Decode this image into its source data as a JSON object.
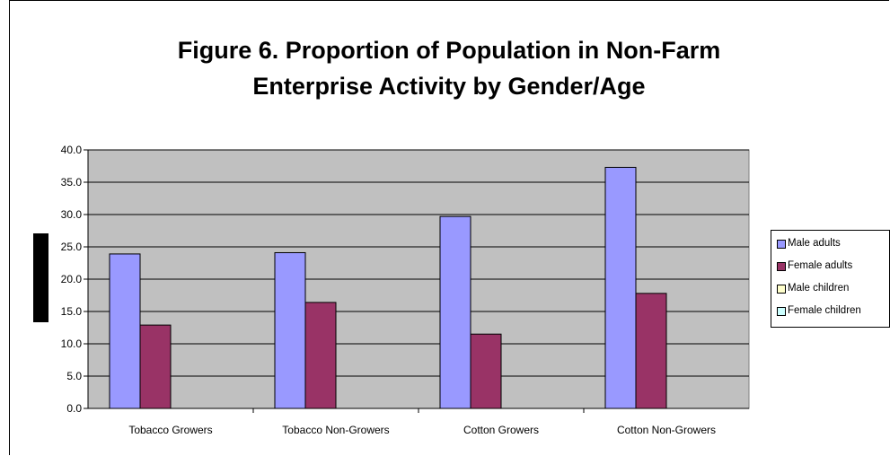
{
  "chart_data": {
    "type": "bar",
    "title_lines": [
      "Figure 6. Proportion of Population in Non-Farm",
      "Enterprise Activity by Gender/Age"
    ],
    "categories": [
      "Tobacco Growers",
      "Tobacco Non-Growers",
      "Cotton Growers",
      "Cotton Non-Growers"
    ],
    "series": [
      {
        "name": "Male adults",
        "color": "#9999ff",
        "values": [
          23.9,
          24.1,
          29.7,
          37.3
        ]
      },
      {
        "name": "Female adults",
        "color": "#993366",
        "values": [
          12.9,
          16.4,
          11.5,
          17.8
        ]
      },
      {
        "name": "Male children",
        "color": "#ffffcc",
        "values": [
          0,
          0,
          0,
          0
        ]
      },
      {
        "name": "Female children",
        "color": "#ccffff",
        "values": [
          0,
          0,
          0,
          0
        ]
      }
    ],
    "ylim": [
      0,
      40
    ],
    "yticks": [
      "0.0",
      "5.0",
      "10.0",
      "15.0",
      "20.0",
      "25.0",
      "30.0",
      "35.0",
      "40.0"
    ],
    "xlabel": "",
    "ylabel": "",
    "plot_background": "#c0c0c0",
    "grid": true,
    "legend_position": "right"
  }
}
